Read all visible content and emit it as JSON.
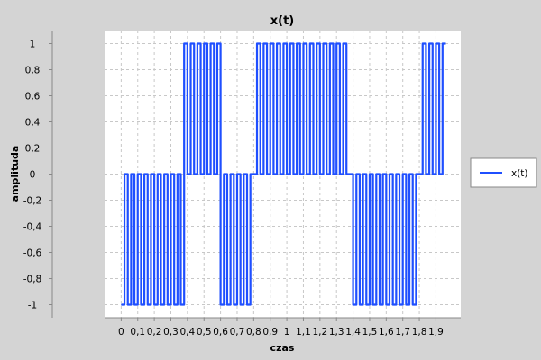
{
  "chart_data": {
    "type": "line",
    "title": "x(t)",
    "xlabel": "czas",
    "ylabel": "amplituda",
    "xlim": [
      -0.1,
      2.05
    ],
    "ylim": [
      -1.1,
      1.1
    ],
    "grid": true,
    "legend_position": "right",
    "x_ticks": [
      "0",
      "0,1",
      "0,2",
      "0,3",
      "0,4",
      "0,5",
      "0,6",
      "0,7",
      "0,8",
      "0,9",
      "1",
      "1,1",
      "1,2",
      "1,3",
      "1,4",
      "1,5",
      "1,6",
      "1,7",
      "1,8",
      "1,9"
    ],
    "y_ticks": [
      "1",
      "0,8",
      "0,6",
      "0,4",
      "0,2",
      "0",
      "-0,2",
      "-0,4",
      "-0,6",
      "-0,8",
      "-1"
    ],
    "series": [
      {
        "name": "x(t)",
        "color": "#1f4fff",
        "carrier_period": 0.04,
        "x_start": 0,
        "x_end": 1.96,
        "segments": [
          {
            "x_start": 0,
            "x_end": 0.38,
            "low": -1,
            "high": 0
          },
          {
            "x_start": 0.38,
            "x_end": 0.59,
            "low": 0,
            "high": 1
          },
          {
            "x_start": 0.59,
            "x_end": 0.79,
            "low": -1,
            "high": 0
          },
          {
            "x_start": 0.79,
            "x_end": 1.38,
            "low": 0,
            "high": 1
          },
          {
            "x_start": 1.38,
            "x_end": 1.79,
            "low": -1,
            "high": 0
          },
          {
            "x_start": 1.79,
            "x_end": 1.96,
            "low": 0,
            "high": 1
          }
        ]
      }
    ]
  }
}
